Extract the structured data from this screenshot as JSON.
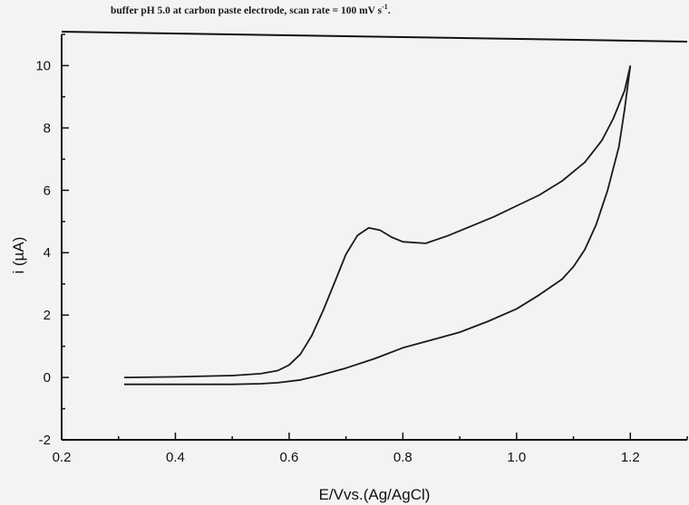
{
  "caption": {
    "text": "buffer pH 5.0 at carbon paste electrode, scan rate = 100 mV s",
    "superscript": "-1",
    "end": "."
  },
  "chart_data": {
    "type": "line",
    "title": "",
    "xlabel": "E/Vvs.(Ag/AgCl)",
    "ylabel": "i (µA)",
    "xlim": [
      0.2,
      1.3
    ],
    "ylim": [
      -2,
      11
    ],
    "xticks": [
      "0.2",
      "0.4",
      "0.6",
      "0.8",
      "1.0",
      "1.2"
    ],
    "yticks": [
      "-2",
      "0",
      "2",
      "4",
      "6",
      "8",
      "10"
    ],
    "grid": false,
    "legend": "none",
    "line_color": "#1a1a1a",
    "series": [
      {
        "x": [
          0.31,
          0.4,
          0.5,
          0.55,
          0.58,
          0.6,
          0.62,
          0.64,
          0.66,
          0.68,
          0.7,
          0.72,
          0.74,
          0.76,
          0.78,
          0.8,
          0.84,
          0.88,
          0.92,
          0.96,
          1.0,
          1.04,
          1.08,
          1.12,
          1.15,
          1.17,
          1.19,
          1.2
        ],
        "y": [
          0.0,
          0.02,
          0.06,
          0.12,
          0.22,
          0.4,
          0.75,
          1.35,
          2.15,
          3.05,
          3.95,
          4.55,
          4.8,
          4.72,
          4.5,
          4.35,
          4.3,
          4.55,
          4.85,
          5.15,
          5.5,
          5.85,
          6.3,
          6.9,
          7.6,
          8.3,
          9.2,
          10.0
        ]
      },
      {
        "x": [
          1.2,
          1.19,
          1.18,
          1.16,
          1.14,
          1.12,
          1.1,
          1.08,
          1.04,
          1.0,
          0.95,
          0.9,
          0.85,
          0.8,
          0.75,
          0.7,
          0.65,
          0.62,
          0.58,
          0.55,
          0.5,
          0.4,
          0.31
        ],
        "y": [
          10.0,
          8.6,
          7.4,
          6.0,
          4.9,
          4.1,
          3.55,
          3.15,
          2.65,
          2.2,
          1.8,
          1.45,
          1.2,
          0.95,
          0.6,
          0.3,
          0.05,
          -0.08,
          -0.17,
          -0.2,
          -0.22,
          -0.22,
          -0.22
        ]
      }
    ]
  }
}
